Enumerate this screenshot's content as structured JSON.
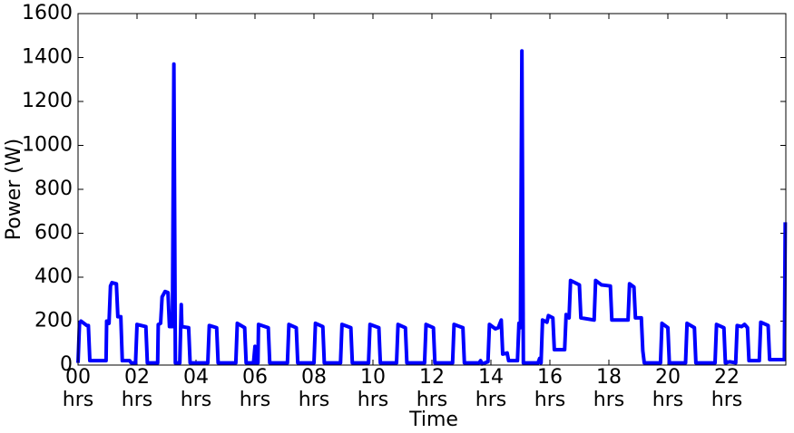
{
  "chart_data": {
    "type": "line",
    "xlabel": "Time",
    "ylabel": "Power (W)",
    "x": [
      0,
      0.05,
      0.1,
      0.3,
      0.35,
      0.4,
      0.95,
      0.97,
      1.05,
      1.1,
      1.15,
      1.3,
      1.35,
      1.45,
      1.5,
      1.75,
      1.8,
      1.95,
      2.0,
      2.3,
      2.35,
      2.7,
      2.72,
      2.8,
      2.85,
      2.95,
      3.05,
      3.1,
      3.2,
      3.25,
      3.3,
      3.45,
      3.5,
      3.52,
      3.75,
      3.8,
      4.4,
      4.45,
      4.7,
      4.75,
      5.35,
      5.4,
      5.65,
      5.7,
      5.95,
      6.0,
      6.02,
      6.1,
      6.12,
      6.45,
      6.5,
      7.1,
      7.15,
      7.4,
      7.45,
      8.0,
      8.05,
      8.3,
      8.35,
      8.9,
      8.95,
      9.25,
      9.3,
      9.85,
      9.9,
      10.2,
      10.25,
      10.8,
      10.85,
      11.1,
      11.15,
      11.75,
      11.8,
      12.05,
      12.1,
      12.7,
      12.75,
      13.05,
      13.1,
      13.6,
      13.65,
      13.7,
      13.9,
      13.95,
      14.15,
      14.25,
      14.35,
      14.4,
      14.55,
      14.6,
      14.9,
      14.95,
      15.0,
      15.05,
      15.1,
      15.6,
      15.65,
      15.7,
      15.75,
      15.9,
      15.95,
      16.1,
      16.15,
      16.5,
      16.55,
      16.65,
      16.7,
      17.0,
      17.05,
      17.5,
      17.55,
      17.65,
      17.75,
      18.05,
      18.1,
      18.65,
      18.7,
      18.85,
      18.9,
      19.1,
      19.15,
      19.2,
      19.75,
      19.8,
      20.0,
      20.05,
      20.6,
      20.65,
      20.9,
      20.95,
      21.6,
      21.65,
      21.9,
      21.95,
      22.1,
      22.3,
      22.35,
      22.5,
      22.6,
      22.7,
      22.75,
      23.1,
      23.15,
      23.4,
      23.45,
      23.95,
      23.98
    ],
    "series": [
      {
        "color": "#0000ff",
        "values": [
          10,
          190,
          200,
          180,
          180,
          20,
          20,
          200,
          190,
          360,
          375,
          370,
          220,
          220,
          20,
          20,
          10,
          10,
          185,
          175,
          10,
          10,
          185,
          190,
          310,
          335,
          330,
          175,
          175,
          1370,
          10,
          10,
          275,
          175,
          170,
          10,
          10,
          180,
          170,
          10,
          10,
          190,
          170,
          10,
          10,
          85,
          10,
          10,
          185,
          170,
          10,
          10,
          185,
          170,
          10,
          10,
          190,
          175,
          10,
          10,
          185,
          170,
          10,
          10,
          185,
          170,
          10,
          10,
          185,
          170,
          10,
          10,
          185,
          170,
          10,
          10,
          185,
          170,
          10,
          10,
          20,
          5,
          15,
          185,
          165,
          170,
          205,
          50,
          55,
          20,
          20,
          190,
          170,
          1430,
          10,
          10,
          30,
          10,
          205,
          195,
          225,
          215,
          70,
          70,
          230,
          215,
          385,
          365,
          215,
          205,
          385,
          375,
          365,
          360,
          205,
          205,
          370,
          355,
          215,
          215,
          65,
          10,
          10,
          190,
          170,
          10,
          10,
          190,
          170,
          10,
          10,
          185,
          170,
          10,
          15,
          10,
          180,
          175,
          185,
          170,
          20,
          20,
          195,
          180,
          25,
          25,
          650
        ]
      }
    ],
    "xlim": [
      0,
      24
    ],
    "xticks": [
      {
        "value": 0,
        "label": "00\nhrs"
      },
      {
        "value": 2,
        "label": "02\nhrs"
      },
      {
        "value": 4,
        "label": "04\nhrs"
      },
      {
        "value": 6,
        "label": "06\nhrs"
      },
      {
        "value": 8,
        "label": "08\nhrs"
      },
      {
        "value": 10,
        "label": "10\nhrs"
      },
      {
        "value": 12,
        "label": "12\nhrs"
      },
      {
        "value": 14,
        "label": "14\nhrs"
      },
      {
        "value": 16,
        "label": "16\nhrs"
      },
      {
        "value": 18,
        "label": "18\nhrs"
      },
      {
        "value": 20,
        "label": "20\nhrs"
      },
      {
        "value": 22,
        "label": "22\nhrs"
      }
    ],
    "ylim": [
      0,
      1600
    ],
    "yticks": [
      0,
      200,
      400,
      600,
      800,
      1000,
      1200,
      1400,
      1600
    ]
  }
}
